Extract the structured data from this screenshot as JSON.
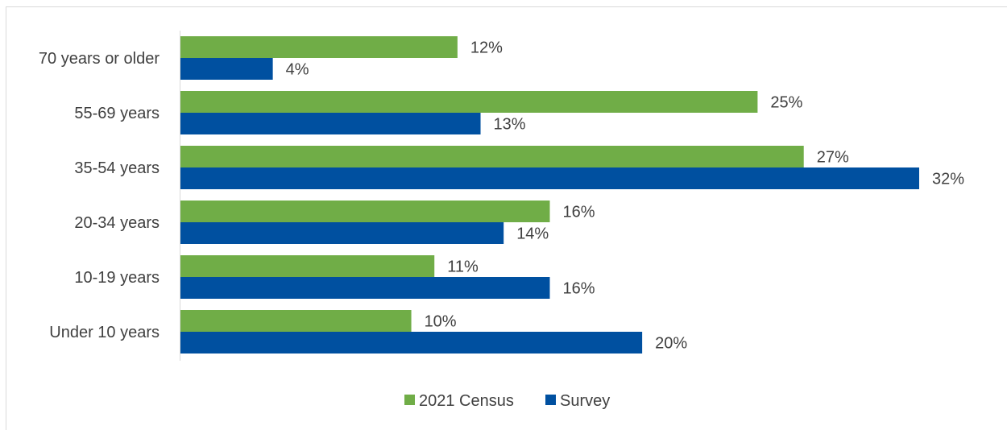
{
  "chart_data": {
    "type": "bar",
    "orientation": "horizontal",
    "categories": [
      "70 years or older",
      "55-69 years",
      "35-54 years",
      "20-34 years",
      "10-19 years",
      "Under 10 years"
    ],
    "series": [
      {
        "name": "2021 Census",
        "color": "#70ad47",
        "values": [
          12,
          25,
          27,
          16,
          11,
          10
        ],
        "labels": [
          "12%",
          "25%",
          "27%",
          "16%",
          "11%",
          "10%"
        ]
      },
      {
        "name": "Survey",
        "color": "#0050a0",
        "values": [
          4,
          13,
          32,
          14,
          16,
          20
        ],
        "labels": [
          "4%",
          "13%",
          "32%",
          "14%",
          "16%",
          "20%"
        ]
      }
    ],
    "xlim": [
      0,
      32
    ],
    "grid": false,
    "legend_position": "bottom"
  }
}
